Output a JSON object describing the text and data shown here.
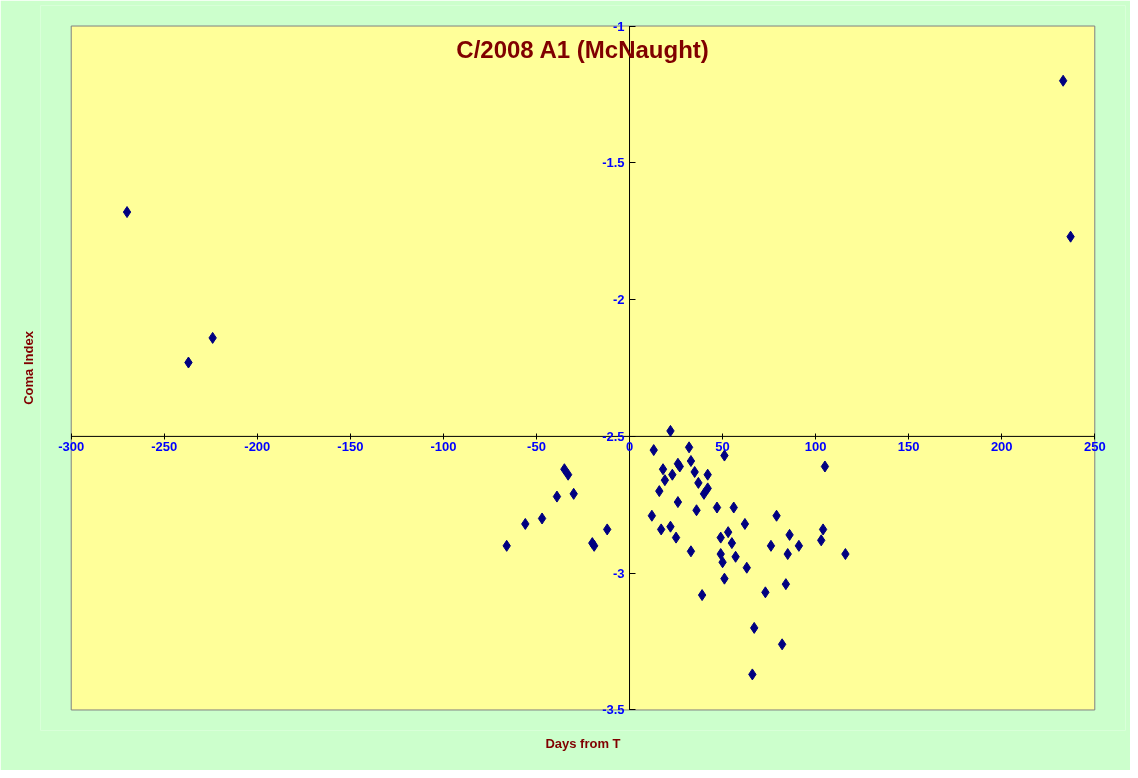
{
  "chart_data": {
    "type": "scatter",
    "title": "C/2008 A1 (McNaught)",
    "xlabel": "Days from T",
    "ylabel": "Coma Index",
    "xlim": [
      -300,
      250
    ],
    "xticks": [
      -300,
      -250,
      -200,
      -150,
      -100,
      -50,
      0,
      50,
      100,
      150,
      200,
      250
    ],
    "ylim": [
      -3.5,
      -1
    ],
    "yticks": [
      -3.5,
      -3,
      -2.5,
      -2,
      -1.5,
      -1
    ],
    "grid": false,
    "marker": "diamond",
    "series": [
      {
        "color": "#000080",
        "x": [
          -270,
          -237,
          -224,
          233,
          237,
          -66,
          -56,
          -47,
          -39,
          -35,
          -33,
          -30,
          -20,
          -19,
          -12,
          22,
          13,
          32,
          33,
          26,
          27,
          18,
          23,
          35,
          42,
          19,
          37,
          42,
          40,
          16,
          26,
          36,
          47,
          56,
          12,
          79,
          62,
          22,
          17,
          53,
          104,
          103,
          86,
          25,
          49,
          55,
          76,
          91,
          33,
          116,
          85,
          49,
          57,
          50,
          63,
          51,
          84,
          73,
          39,
          67,
          82,
          66,
          51,
          105
        ],
        "values": [
          -1.68,
          -2.23,
          -2.14,
          -1.2,
          -1.77,
          -2.9,
          -2.82,
          -2.8,
          -2.72,
          -2.62,
          -2.64,
          -2.71,
          -2.89,
          -2.9,
          -2.84,
          -2.48,
          -2.55,
          -2.54,
          -2.59,
          -2.6,
          -2.61,
          -2.62,
          -2.64,
          -2.63,
          -2.64,
          -2.66,
          -2.67,
          -2.69,
          -2.71,
          -2.7,
          -2.74,
          -2.77,
          -2.76,
          -2.76,
          -2.79,
          -2.79,
          -2.82,
          -2.83,
          -2.84,
          -2.85,
          -2.84,
          -2.88,
          -2.86,
          -2.87,
          -2.87,
          -2.89,
          -2.9,
          -2.9,
          -2.92,
          -2.93,
          -2.93,
          -2.93,
          -2.94,
          -2.96,
          -2.98,
          -3.02,
          -3.04,
          -3.07,
          -3.08,
          -3.2,
          -3.26,
          -3.37,
          -2.57,
          -2.61
        ]
      }
    ]
  }
}
